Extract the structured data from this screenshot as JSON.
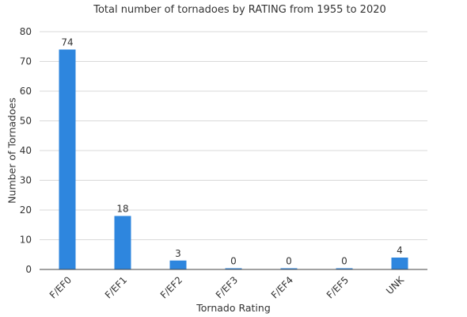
{
  "chart_data": {
    "type": "bar",
    "title": "Total number of tornadoes by RATING from 1955 to 2020",
    "xlabel": "Tornado Rating",
    "ylabel": "Number of Tornadoes",
    "categories": [
      "F/EF0",
      "F/EF1",
      "F/EF2",
      "F/EF3",
      "F/EF4",
      "F/EF5",
      "UNK"
    ],
    "values": [
      74,
      18,
      3,
      0,
      0,
      0,
      4
    ],
    "data_labels": [
      "74",
      "18",
      "3",
      "0",
      "0",
      "0",
      "4"
    ],
    "ylim": [
      0,
      80
    ],
    "yticks": [
      0,
      10,
      20,
      30,
      40,
      50,
      60,
      70,
      80
    ],
    "ytick_labels": [
      "0",
      "10",
      "20",
      "30",
      "40",
      "50",
      "60",
      "70",
      "80"
    ],
    "grid": true,
    "bar_color": "#2e86de"
  }
}
